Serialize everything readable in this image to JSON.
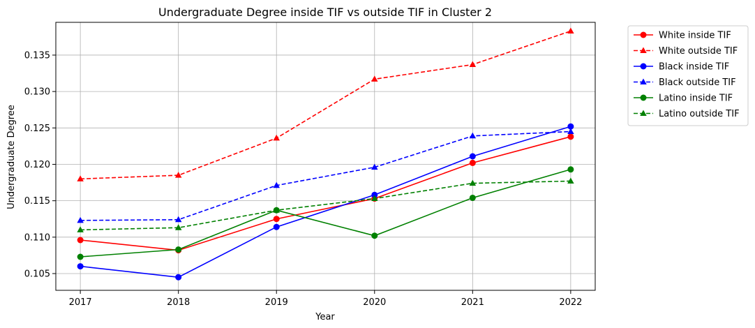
{
  "chart_data": {
    "type": "line",
    "title": "Undergraduate Degree inside TIF vs outside TIF in Cluster 2",
    "xlabel": "Year",
    "ylabel": "Undergraduate Degree",
    "x": [
      2017,
      2018,
      2019,
      2020,
      2021,
      2022
    ],
    "x_tick_labels": [
      "2017",
      "2018",
      "2019",
      "2020",
      "2021",
      "2022"
    ],
    "xlim": [
      2016.75,
      2022.25
    ],
    "ylim": [
      0.1027,
      0.1395
    ],
    "y_ticks": [
      0.105,
      0.11,
      0.115,
      0.12,
      0.125,
      0.13,
      0.135
    ],
    "y_tick_labels": [
      "0.105",
      "0.110",
      "0.115",
      "0.120",
      "0.125",
      "0.130",
      "0.135"
    ],
    "grid": true,
    "legend_position": "outside-top-right",
    "series": [
      {
        "name": "White inside TIF",
        "color": "#ff0000",
        "linestyle": "solid",
        "marker": "circle",
        "values": [
          0.1096,
          0.1082,
          0.1125,
          0.1153,
          0.1202,
          0.1238
        ]
      },
      {
        "name": "White outside TIF",
        "color": "#ff0000",
        "linestyle": "dashed",
        "marker": "triangle",
        "values": [
          0.118,
          0.1185,
          0.1236,
          0.1317,
          0.1337,
          0.1383
        ]
      },
      {
        "name": "Black inside TIF",
        "color": "#0000ff",
        "linestyle": "solid",
        "marker": "circle",
        "values": [
          0.106,
          0.1045,
          0.1114,
          0.1158,
          0.1211,
          0.1252
        ]
      },
      {
        "name": "Black outside TIF",
        "color": "#0000ff",
        "linestyle": "dashed",
        "marker": "triangle",
        "values": [
          0.1123,
          0.1124,
          0.1171,
          0.1196,
          0.1239,
          0.1245
        ]
      },
      {
        "name": "Latino inside TIF",
        "color": "#008000",
        "linestyle": "solid",
        "marker": "circle",
        "values": [
          0.1073,
          0.1083,
          0.1137,
          0.1102,
          0.1154,
          0.1193
        ]
      },
      {
        "name": "Latino outside TIF",
        "color": "#008000",
        "linestyle": "dashed",
        "marker": "triangle",
        "values": [
          0.111,
          0.1113,
          0.1137,
          0.1153,
          0.1174,
          0.1177
        ]
      }
    ]
  }
}
